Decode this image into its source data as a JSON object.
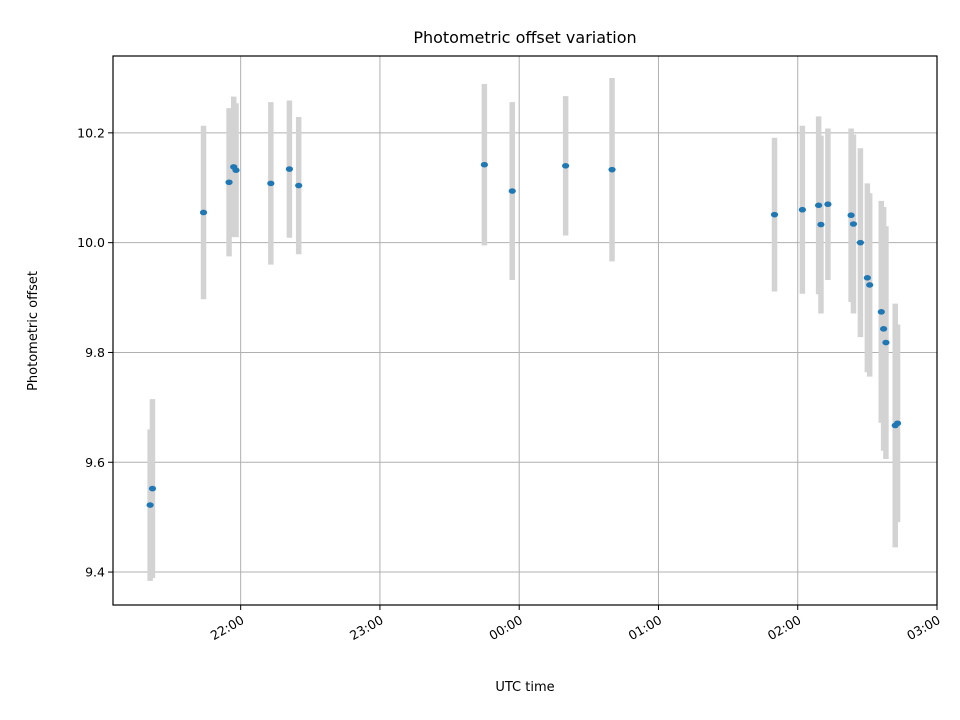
{
  "chart_data": {
    "type": "scatter",
    "title": "Photometric offset variation",
    "xlabel": "UTC time",
    "ylabel": "Photometric offset",
    "x_axis": "time (UTC, hours; day rolls over at midnight)",
    "xlim": [
      "21:05",
      "03:00"
    ],
    "ylim": [
      9.34,
      10.34
    ],
    "x_ticks": [
      "22:00",
      "23:00",
      "00:00",
      "01:00",
      "02:00",
      "03:00"
    ],
    "y_ticks": [
      "9.4",
      "9.6",
      "9.8",
      "10.0",
      "10.2"
    ],
    "grid": true,
    "marker_color": "#1f77b4",
    "errorbar_color": "#d3d3d3",
    "points": [
      {
        "t": "21:21",
        "y": 9.522,
        "err": 0.138
      },
      {
        "t": "21:22",
        "y": 9.552,
        "err": 0.163
      },
      {
        "t": "21:44",
        "y": 10.055,
        "err": 0.158
      },
      {
        "t": "21:55",
        "y": 10.11,
        "err": 0.135
      },
      {
        "t": "21:57",
        "y": 10.138,
        "err": 0.128
      },
      {
        "t": "21:58",
        "y": 10.132,
        "err": 0.122
      },
      {
        "t": "22:13",
        "y": 10.108,
        "err": 0.148
      },
      {
        "t": "22:21",
        "y": 10.134,
        "err": 0.125
      },
      {
        "t": "22:25",
        "y": 10.104,
        "err": 0.125
      },
      {
        "t": "23:45",
        "y": 10.142,
        "err": 0.147
      },
      {
        "t": "23:57",
        "y": 10.094,
        "err": 0.162
      },
      {
        "t": "00:20",
        "y": 10.14,
        "err": 0.127
      },
      {
        "t": "00:40",
        "y": 10.133,
        "err": 0.167
      },
      {
        "t": "01:50",
        "y": 10.051,
        "err": 0.14
      },
      {
        "t": "02:02",
        "y": 10.06,
        "err": 0.153
      },
      {
        "t": "02:09",
        "y": 10.068,
        "err": 0.162
      },
      {
        "t": "02:10",
        "y": 10.033,
        "err": 0.162
      },
      {
        "t": "02:13",
        "y": 10.07,
        "err": 0.138
      },
      {
        "t": "02:23",
        "y": 10.05,
        "err": 0.158
      },
      {
        "t": "02:24",
        "y": 10.034,
        "err": 0.163
      },
      {
        "t": "02:27",
        "y": 10.0,
        "err": 0.172
      },
      {
        "t": "02:30",
        "y": 9.936,
        "err": 0.172
      },
      {
        "t": "02:31",
        "y": 9.923,
        "err": 0.167
      },
      {
        "t": "02:36",
        "y": 9.874,
        "err": 0.202
      },
      {
        "t": "02:37",
        "y": 9.843,
        "err": 0.222
      },
      {
        "t": "02:38",
        "y": 9.818,
        "err": 0.212
      },
      {
        "t": "02:42",
        "y": 9.667,
        "err": 0.222
      },
      {
        "t": "02:43",
        "y": 9.671,
        "err": 0.18
      }
    ]
  }
}
